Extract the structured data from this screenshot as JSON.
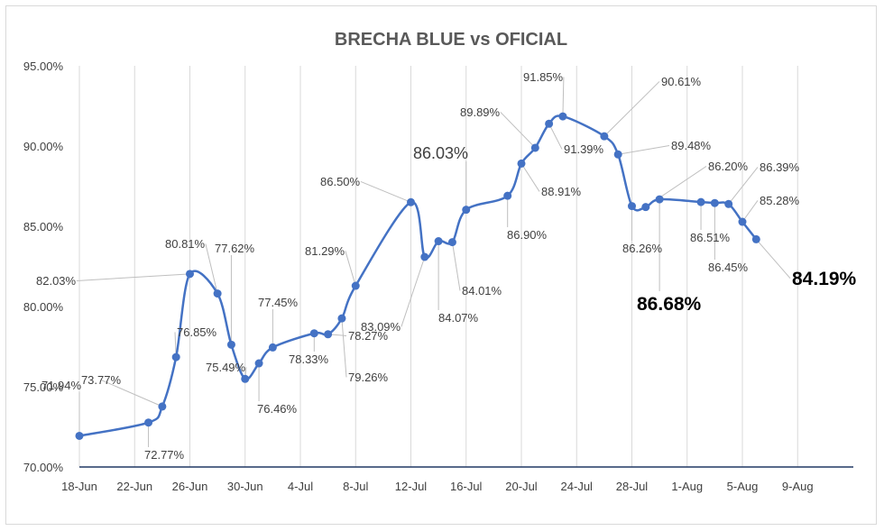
{
  "chart_data": {
    "type": "line",
    "title": "BRECHA BLUE vs OFICIAL",
    "xlabel": "",
    "ylabel": "",
    "ylim": [
      70,
      95
    ],
    "y_ticks": [
      "70.00%",
      "75.00%",
      "80.00%",
      "85.00%",
      "90.00%",
      "95.00%"
    ],
    "x_ticks": [
      "18-Jun",
      "22-Jun",
      "26-Jun",
      "30-Jun",
      "4-Jul",
      "8-Jul",
      "12-Jul",
      "16-Jul",
      "20-Jul",
      "24-Jul",
      "28-Jul",
      "1-Aug",
      "5-Aug",
      "9-Aug"
    ],
    "grid": "vertical",
    "legend": "none",
    "colors": {
      "line": "#4472c4",
      "grid": "#d9d9d9",
      "axis": "#203864",
      "text": "#404040",
      "title": "#595959"
    },
    "series": [
      {
        "x": [
          "2021-06-18",
          "2021-06-23",
          "2021-06-24",
          "2021-06-25",
          "2021-06-26",
          "2021-06-28",
          "2021-06-29",
          "2021-06-30",
          "2021-07-01",
          "2021-07-02",
          "2021-07-05",
          "2021-07-06",
          "2021-07-07",
          "2021-07-08",
          "2021-07-12",
          "2021-07-13",
          "2021-07-14",
          "2021-07-15",
          "2021-07-16",
          "2021-07-19",
          "2021-07-20",
          "2021-07-21",
          "2021-07-22",
          "2021-07-23",
          "2021-07-26",
          "2021-07-27",
          "2021-07-28",
          "2021-07-29",
          "2021-07-30",
          "2021-08-02",
          "2021-08-03",
          "2021-08-04",
          "2021-08-05",
          "2021-08-06"
        ],
        "values": [
          71.94,
          72.77,
          73.77,
          76.85,
          82.03,
          80.81,
          77.62,
          75.49,
          76.46,
          77.45,
          78.33,
          78.27,
          79.26,
          81.29,
          86.5,
          83.09,
          84.07,
          84.01,
          86.03,
          86.9,
          88.91,
          89.89,
          91.39,
          91.85,
          90.61,
          89.48,
          86.26,
          86.2,
          86.68,
          86.51,
          86.45,
          86.39,
          85.28,
          84.19
        ],
        "labels": [
          "71.94%",
          "72.77%",
          "73.77%",
          "76.85%",
          "82.03%",
          "80.81%",
          "77.62%",
          "75.49%",
          "76.46%",
          "77.45%",
          "78.33%",
          "78.27%",
          "79.26%",
          "81.29%",
          "86.50%",
          "83.09%",
          "84.07%",
          "84.01%",
          "86.03%",
          "86.90%",
          "88.91%",
          "89.89%",
          "91.39%",
          "91.85%",
          "90.61%",
          "89.48%",
          "86.26%",
          "86.20%",
          "86.68%",
          "86.51%",
          "86.45%",
          "86.39%",
          "85.28%",
          "84.19%"
        ]
      }
    ]
  }
}
